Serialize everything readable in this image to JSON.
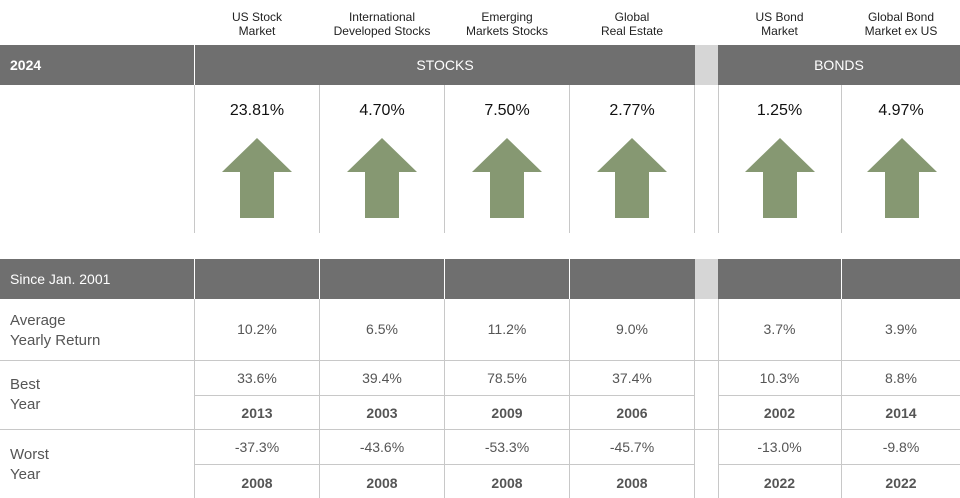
{
  "columns": [
    {
      "header": "US Stock\nMarket",
      "return_2024": "23.81%",
      "avg": "10.2%",
      "best": "33.6%",
      "best_year": "2013",
      "worst": "-37.3%",
      "worst_year": "2008"
    },
    {
      "header": "International\nDeveloped Stocks",
      "return_2024": "4.70%",
      "avg": "6.5%",
      "best": "39.4%",
      "best_year": "2003",
      "worst": "-43.6%",
      "worst_year": "2008"
    },
    {
      "header": "Emerging\nMarkets Stocks",
      "return_2024": "7.50%",
      "avg": "11.2%",
      "best": "78.5%",
      "best_year": "2009",
      "worst": "-53.3%",
      "worst_year": "2008"
    },
    {
      "header": "Global\nReal Estate",
      "return_2024": "2.77%",
      "avg": "9.0%",
      "best": "37.4%",
      "best_year": "2006",
      "worst": "-45.7%",
      "worst_year": "2008"
    },
    {
      "header": "US Bond\nMarket",
      "return_2024": "1.25%",
      "avg": "3.7%",
      "best": "10.3%",
      "best_year": "2002",
      "worst": "-13.0%",
      "worst_year": "2022"
    },
    {
      "header": "Global Bond\nMarket ex US",
      "return_2024": "4.97%",
      "avg": "3.9%",
      "best": "8.8%",
      "best_year": "2014",
      "worst": "-9.8%",
      "worst_year": "2022"
    }
  ],
  "top_bar": {
    "year_label": "2024",
    "stocks_label": "STOCKS",
    "bonds_label": "BONDS"
  },
  "since_bar": {
    "label": "Since Jan. 2001"
  },
  "rows": {
    "avg_label": "Average\nYearly Return",
    "best_label": "Best\nYear",
    "worst_label": "Worst\nYear"
  },
  "icons": {
    "direction_icon": "up-arrow-icon"
  },
  "colors": {
    "bar": "#6f6f6f",
    "gap": "#d6d6d6",
    "arrow": "#869872"
  }
}
